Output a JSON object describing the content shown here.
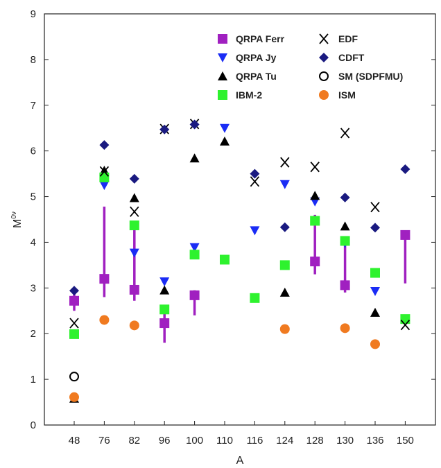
{
  "chart_data": {
    "type": "scatter",
    "xlabel": "A",
    "ylabel_main": "M",
    "ylabel_sup": "0ν",
    "categories": [
      "48",
      "76",
      "82",
      "96",
      "100",
      "110",
      "116",
      "124",
      "128",
      "130",
      "136",
      "150"
    ],
    "ylim": [
      0,
      9
    ],
    "yticks": [
      0,
      1,
      2,
      3,
      4,
      5,
      6,
      7,
      8,
      9
    ],
    "grid": false,
    "legend_position": "top-right",
    "series": [
      {
        "name": "QRPA Ferr",
        "marker": "square",
        "color": "#a020c0",
        "values": [
          2.72,
          3.2,
          2.96,
          2.23,
          2.84,
          null,
          null,
          null,
          3.58,
          3.06,
          null,
          4.16
        ],
        "err_low": [
          2.5,
          2.8,
          2.72,
          1.8,
          2.4,
          null,
          null,
          null,
          3.3,
          2.9,
          null,
          3.1
        ],
        "err_high": [
          3.0,
          4.78,
          4.38,
          2.5,
          2.95,
          null,
          null,
          null,
          4.6,
          4.1,
          null,
          4.25
        ]
      },
      {
        "name": "QRPA Jy",
        "marker": "triangle-down",
        "color": "#1a2cf5",
        "values": [
          null,
          5.25,
          3.77,
          3.14,
          3.89,
          6.5,
          4.26,
          5.27,
          4.89,
          3.98,
          2.93,
          null
        ]
      },
      {
        "name": "QRPA Tu",
        "marker": "triangle-up",
        "color": "#000000",
        "values": [
          0.58,
          5.57,
          4.97,
          2.95,
          5.84,
          6.21,
          null,
          2.9,
          5.02,
          4.35,
          2.46,
          null
        ]
      },
      {
        "name": "IBM-2",
        "marker": "square",
        "color": "#2ef22e",
        "values": [
          1.99,
          5.42,
          4.37,
          2.53,
          3.73,
          3.62,
          2.78,
          3.5,
          4.47,
          4.03,
          3.33,
          2.32
        ]
      },
      {
        "name": "EDF",
        "marker": "x",
        "color": "#000000",
        "values": [
          2.23,
          5.55,
          4.67,
          6.48,
          6.59,
          null,
          5.33,
          5.75,
          5.65,
          6.39,
          4.77,
          2.19
        ]
      },
      {
        "name": "CDFT",
        "marker": "diamond",
        "color": "#1a1a80",
        "values": [
          2.94,
          6.13,
          5.39,
          6.47,
          6.58,
          null,
          5.5,
          4.33,
          null,
          4.98,
          4.32,
          5.6
        ]
      },
      {
        "name": "SM (SDPFMU)",
        "marker": "circle-open",
        "color": "#000000",
        "values": [
          1.06,
          null,
          null,
          null,
          null,
          null,
          null,
          null,
          null,
          null,
          null,
          null
        ]
      },
      {
        "name": "ISM",
        "marker": "circle",
        "color": "#f07a20",
        "values": [
          0.61,
          2.3,
          2.18,
          null,
          null,
          null,
          null,
          2.1,
          null,
          2.12,
          1.77,
          null
        ]
      }
    ]
  }
}
